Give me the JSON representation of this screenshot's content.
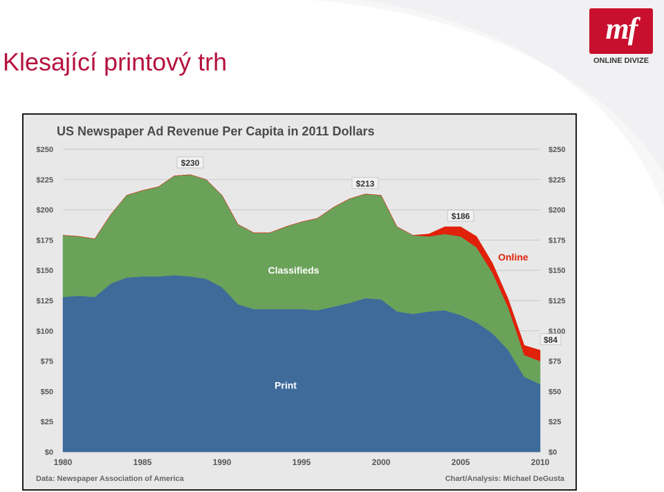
{
  "slide": {
    "title": "Klesající printový trh"
  },
  "logo": {
    "mark": "mf",
    "caption": "ONLINE DIVIZE",
    "color": "#c8102e"
  },
  "colors": {
    "title": "#b5123e",
    "print": "#3e6b9a",
    "classifieds": "#6aa25a",
    "online": "#e0210b",
    "frame_bg": "#e8e8e9"
  },
  "chart_data": {
    "type": "area",
    "stacked": true,
    "title": "US Newspaper Ad Revenue Per Capita in 2011 Dollars",
    "x": [
      1980,
      1981,
      1982,
      1983,
      1984,
      1985,
      1986,
      1987,
      1988,
      1989,
      1990,
      1991,
      1992,
      1993,
      1994,
      1995,
      1996,
      1997,
      1998,
      1999,
      2000,
      2001,
      2002,
      2003,
      2004,
      2005,
      2006,
      2007,
      2008,
      2009,
      2010
    ],
    "xticks": [
      1980,
      1985,
      1990,
      1995,
      2000,
      2005,
      2010
    ],
    "ylim": [
      0,
      250
    ],
    "yticks": [
      0,
      25,
      50,
      75,
      100,
      125,
      150,
      175,
      200,
      225,
      250
    ],
    "tick_prefix": "$",
    "y_axis": "both",
    "grid": true,
    "series": [
      {
        "name": "Print",
        "color": "#3e6b9a",
        "values": [
          128,
          129,
          128,
          139,
          144,
          145,
          145,
          146,
          145,
          143,
          136,
          122,
          118,
          118,
          118,
          118,
          117,
          120,
          123,
          127,
          126,
          116,
          114,
          116,
          117,
          113,
          107,
          98,
          84,
          62,
          56
        ]
      },
      {
        "name": "Classifieds",
        "color": "#6aa25a",
        "values": [
          51,
          49,
          48,
          57,
          68,
          71,
          74,
          82,
          84,
          82,
          76,
          66,
          63,
          63,
          68,
          72,
          76,
          82,
          86,
          86,
          86,
          70,
          65,
          62,
          63,
          65,
          62,
          50,
          35,
          18,
          19
        ]
      },
      {
        "name": "Online",
        "color": "#e0210b",
        "values": [
          0,
          0,
          0,
          0,
          0,
          0,
          0,
          0,
          0,
          0,
          0,
          0,
          0,
          0,
          0,
          0,
          0,
          0,
          0,
          0,
          0,
          0,
          0,
          2,
          6,
          8,
          9,
          8,
          7,
          8,
          9
        ]
      }
    ],
    "peak_labels": [
      {
        "x": 1988,
        "y": 230,
        "text": "$230"
      },
      {
        "x": 1999,
        "y": 213,
        "text": "$213"
      },
      {
        "x": 2005,
        "y": 186,
        "text": "$186"
      },
      {
        "x": 2010,
        "y": 84,
        "text": "$84"
      }
    ],
    "series_labels": [
      {
        "series": "Classifieds",
        "x": 1994.5,
        "y": 150,
        "text": "Classifieds"
      },
      {
        "series": "Print",
        "x": 1994,
        "y": 55,
        "text": "Print"
      },
      {
        "series": "Online",
        "x": 2008.3,
        "y": 161,
        "text": "Online"
      }
    ],
    "source": "Data: Newspaper Association of America",
    "credit": "Chart/Analysis: Michael DeGusta"
  }
}
